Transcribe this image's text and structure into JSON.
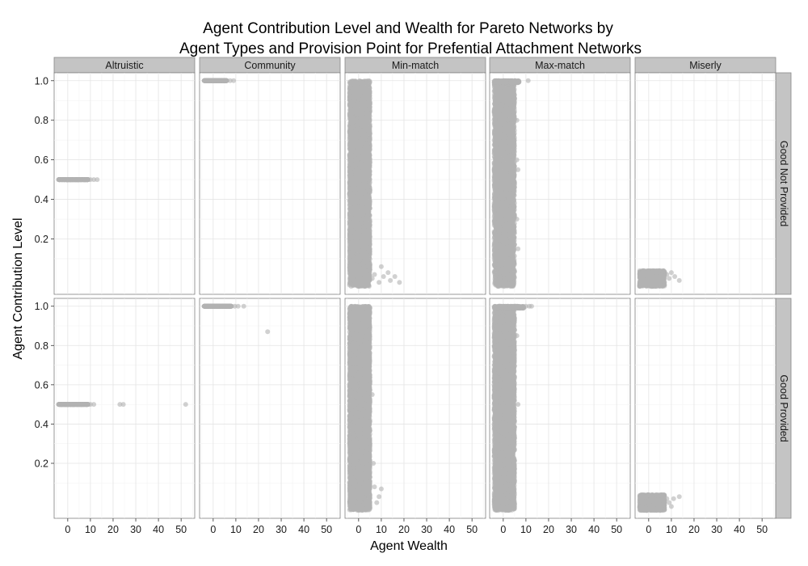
{
  "chart_data": {
    "type": "scatter",
    "title": "Agent Contribution Level and Wealth for Pareto Networks by\nAgent Types and Provision Point for Prefential Attachment Networks",
    "xlabel": "Agent Wealth",
    "ylabel": "Agent Contribution Level",
    "columns": [
      "Altruistic",
      "Community",
      "Min-match",
      "Max-match",
      "Miserly"
    ],
    "rows": [
      "Good Not Provided",
      "Good Provided"
    ],
    "xlim": [
      -6,
      56
    ],
    "ylim": [
      -0.08,
      1.04
    ],
    "xticks": [
      0,
      10,
      20,
      30,
      40,
      50
    ],
    "yticks": [
      0.2,
      0.4,
      0.6,
      0.8,
      1.0
    ],
    "ytick_labels": [
      "0.2",
      "0.4",
      "0.6",
      "0.8",
      "1.0"
    ],
    "grid": true,
    "point_color": "#b3b3b3",
    "strip_color": "#c4c4c4",
    "panels": [
      {
        "column": "Altruistic",
        "row": "Good Not Provided",
        "clusters": [
          {
            "x": [
              -4,
              9
            ],
            "y": [
              0.5,
              0.5
            ],
            "n": 500
          }
        ],
        "points": [
          [
            10,
            0.5
          ],
          [
            11.5,
            0.5
          ],
          [
            13,
            0.5
          ]
        ]
      },
      {
        "column": "Community",
        "row": "Good Not Provided",
        "clusters": [
          {
            "x": [
              -4,
              6
            ],
            "y": [
              1.0,
              1.0
            ],
            "n": 500
          }
        ],
        "points": [
          [
            7.5,
            1.0
          ],
          [
            9,
            1.0
          ]
        ]
      },
      {
        "column": "Min-match",
        "row": "Good Not Provided",
        "clusters": [
          {
            "x": [
              -4,
              5
            ],
            "y": [
              -0.04,
              1.0
            ],
            "n": 6000
          }
        ],
        "points": [
          [
            6,
            0.0
          ],
          [
            7,
            0.02
          ],
          [
            9,
            -0.02
          ],
          [
            10,
            0.06
          ],
          [
            11,
            0.01
          ],
          [
            13,
            0.03
          ],
          [
            14,
            -0.01
          ],
          [
            16,
            0.01
          ],
          [
            18,
            -0.02
          ]
        ]
      },
      {
        "column": "Max-match",
        "row": "Good Not Provided",
        "clusters": [
          {
            "x": [
              -4,
              5
            ],
            "y": [
              -0.04,
              1.0
            ],
            "n": 5000
          },
          {
            "x": [
              -4,
              7
            ],
            "y": [
              0.99,
              1.0
            ],
            "n": 300
          }
        ],
        "points": [
          [
            11,
            1.0
          ],
          [
            6,
            0.8
          ],
          [
            6.5,
            0.55
          ],
          [
            6,
            0.3
          ],
          [
            6.5,
            0.15
          ],
          [
            6,
            0.6
          ]
        ]
      },
      {
        "column": "Miserly",
        "row": "Good Not Provided",
        "clusters": [
          {
            "x": [
              -4,
              7
            ],
            "y": [
              -0.04,
              0.04
            ],
            "n": 1200
          }
        ],
        "points": [
          [
            8,
            0.02
          ],
          [
            9,
            0.0
          ],
          [
            10,
            0.03
          ],
          [
            11.5,
            0.01
          ],
          [
            13.5,
            -0.01
          ]
        ]
      },
      {
        "column": "Altruistic",
        "row": "Good Provided",
        "clusters": [
          {
            "x": [
              -4,
              9
            ],
            "y": [
              0.5,
              0.5
            ],
            "n": 600
          }
        ],
        "points": [
          [
            10,
            0.5
          ],
          [
            11.5,
            0.5
          ],
          [
            23,
            0.5
          ],
          [
            24.5,
            0.5
          ],
          [
            52,
            0.5
          ]
        ]
      },
      {
        "column": "Community",
        "row": "Good Provided",
        "clusters": [
          {
            "x": [
              -4,
              8
            ],
            "y": [
              1.0,
              1.0
            ],
            "n": 600
          }
        ],
        "points": [
          [
            9.5,
            1.0
          ],
          [
            11,
            1.0
          ],
          [
            13.5,
            1.0
          ],
          [
            24,
            0.87
          ]
        ]
      },
      {
        "column": "Min-match",
        "row": "Good Provided",
        "clusters": [
          {
            "x": [
              -4,
              5
            ],
            "y": [
              -0.04,
              1.0
            ],
            "n": 7000
          }
        ],
        "points": [
          [
            6,
            0.55
          ],
          [
            6.5,
            0.2
          ],
          [
            7,
            0.08
          ],
          [
            8,
            0.0
          ],
          [
            9,
            0.03
          ],
          [
            10,
            0.07
          ]
        ]
      },
      {
        "column": "Max-match",
        "row": "Good Provided",
        "clusters": [
          {
            "x": [
              -4,
              5
            ],
            "y": [
              -0.04,
              1.0
            ],
            "n": 6500
          },
          {
            "x": [
              -4,
              9
            ],
            "y": [
              0.99,
              1.0
            ],
            "n": 400
          }
        ],
        "points": [
          [
            10,
            1.0
          ],
          [
            11.5,
            1.0
          ],
          [
            12.5,
            1.0
          ],
          [
            6,
            0.85
          ],
          [
            6.5,
            0.5
          ]
        ]
      },
      {
        "column": "Miserly",
        "row": "Good Provided",
        "clusters": [
          {
            "x": [
              -4,
              7
            ],
            "y": [
              -0.04,
              0.04
            ],
            "n": 1200
          }
        ],
        "points": [
          [
            8,
            0.02
          ],
          [
            9,
            0.0
          ],
          [
            10,
            -0.02
          ],
          [
            11,
            0.02
          ],
          [
            13.5,
            0.03
          ]
        ]
      }
    ]
  }
}
